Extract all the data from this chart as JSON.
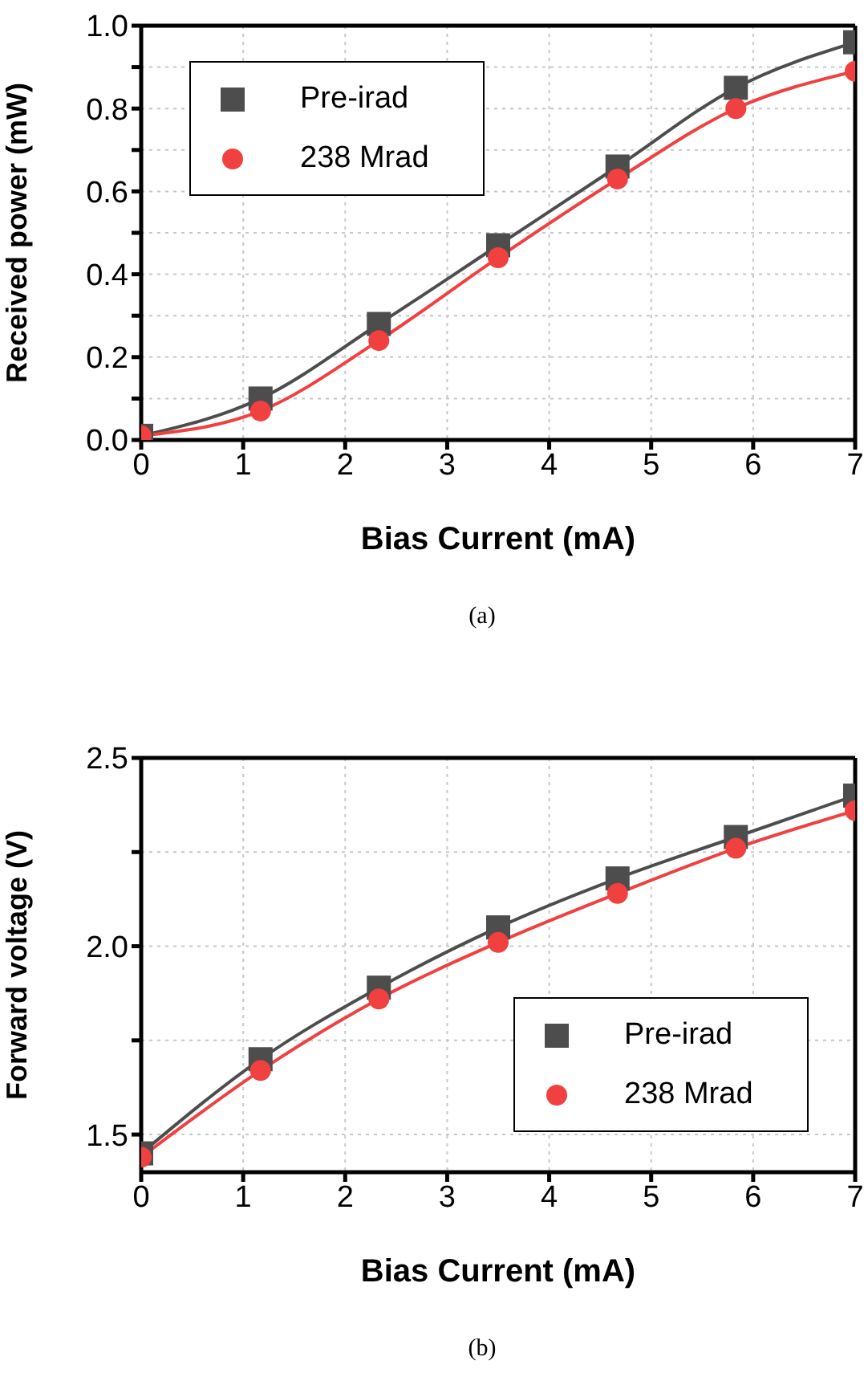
{
  "chart_data": [
    {
      "type": "line",
      "xlabel": "Bias Current (mA)",
      "ylabel": "Received power (mW)",
      "annotations": [
        "(a)"
      ],
      "x": [
        0,
        1.17,
        2.33,
        3.5,
        4.67,
        5.83,
        7
      ],
      "series": [
        {
          "name": "Pre-irad",
          "color": "#4d4d4d",
          "marker": "square",
          "values": [
            0.01,
            0.1,
            0.28,
            0.47,
            0.66,
            0.85,
            0.96
          ]
        },
        {
          "name": "238 Mrad",
          "color": "#f04040",
          "marker": "circle",
          "values": [
            0.01,
            0.07,
            0.24,
            0.44,
            0.63,
            0.8,
            0.89
          ]
        }
      ],
      "xlim": [
        0,
        7
      ],
      "xticks": [
        0,
        1,
        2,
        3,
        4,
        5,
        6,
        7
      ],
      "ylim": [
        0,
        1.0
      ],
      "yticks": [
        {
          "value": 0,
          "label": "0.0"
        },
        {
          "value": 0.1,
          "label": null
        },
        0.2,
        {
          "value": 0.3,
          "label": null
        },
        0.4,
        {
          "value": 0.5,
          "label": null
        },
        0.6,
        {
          "value": 0.7,
          "label": null
        },
        0.8,
        {
          "value": 0.9,
          "label": null
        },
        {
          "value": 1.0,
          "label": "1.0"
        }
      ],
      "grid": true,
      "legend": "top left"
    },
    {
      "type": "line",
      "xlabel": "Bias Current (mA)",
      "ylabel": "Forward voltage (V)",
      "annotations": [
        "(b)"
      ],
      "x": [
        0,
        1.17,
        2.33,
        3.5,
        4.67,
        5.83,
        7
      ],
      "series": [
        {
          "name": "Pre-irad",
          "color": "#4d4d4d",
          "marker": "square",
          "values": [
            1.45,
            1.7,
            1.89,
            2.05,
            2.18,
            2.29,
            2.4
          ]
        },
        {
          "name": "238 Mrad",
          "color": "#f04040",
          "marker": "circle",
          "values": [
            1.44,
            1.67,
            1.86,
            2.01,
            2.14,
            2.26,
            2.36
          ]
        }
      ],
      "xlim": [
        0,
        7
      ],
      "xticks": [
        0,
        1,
        2,
        3,
        4,
        5,
        6,
        7
      ],
      "ylim": [
        1.4,
        2.5
      ],
      "yticks": [
        1.5,
        {
          "value": 1.75,
          "label": null
        },
        {
          "value": 2.0,
          "label": "2.0"
        },
        {
          "value": 2.25,
          "label": null
        },
        2.5
      ],
      "grid": true,
      "legend": "bottom right"
    }
  ]
}
